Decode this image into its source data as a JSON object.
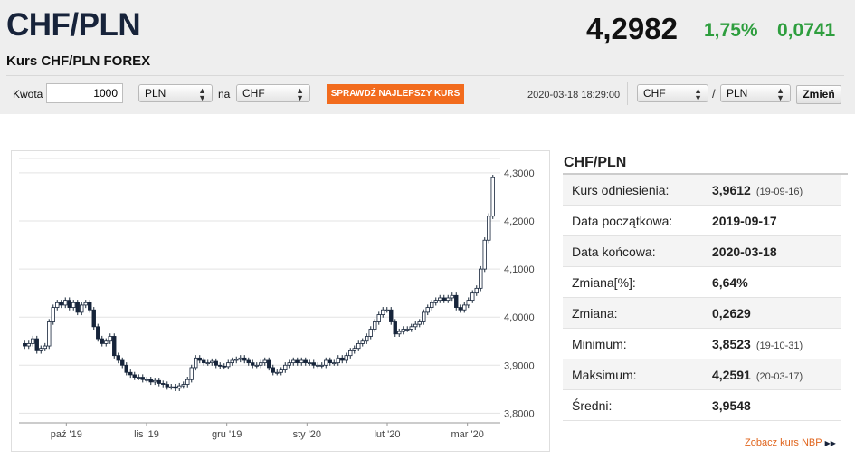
{
  "header": {
    "pair": "CHF/PLN",
    "subtitle": "Kurs CHF/PLN FOREX",
    "rate": "4,2982",
    "change_pct": "1,75%",
    "change_abs": "0,0741",
    "positive_color": "#2e9e3e"
  },
  "converter": {
    "amount_label": "Kwota",
    "amount_value": "1000",
    "from_currency": "PLN",
    "to_label": "na",
    "to_currency": "CHF",
    "check_button": "SPRAWDŹ NAJLEPSZY KURS",
    "accent_color": "#f26b1d"
  },
  "pair_selector": {
    "timestamp": "2020-03-18 18:29:00",
    "base": "CHF",
    "separator": "/",
    "quote": "PLN",
    "change_button": "Zmień"
  },
  "chart_data": {
    "type": "candlestick",
    "x_tick_labels": [
      "paź '19",
      "lis '19",
      "gru '19",
      "sty '20",
      "lut '20",
      "mar '20"
    ],
    "y_ticks": [
      3.8,
      3.9,
      4.0,
      4.1,
      4.2,
      4.3
    ],
    "y_tick_labels": [
      "3,8000",
      "3,9000",
      "4,0000",
      "4,1000",
      "4,2000",
      "4,3000"
    ],
    "ylim": [
      3.78,
      4.33
    ],
    "grid": true,
    "date_range": [
      "2019-09-17",
      "2020-03-18"
    ],
    "close_series": [
      3.94,
      3.945,
      3.955,
      3.93,
      3.935,
      3.94,
      3.99,
      4.02,
      4.03,
      4.025,
      4.035,
      4.02,
      4.03,
      4.01,
      4.025,
      4.03,
      4.015,
      3.98,
      3.955,
      3.945,
      3.95,
      3.96,
      3.92,
      3.91,
      3.9,
      3.885,
      3.88,
      3.875,
      3.875,
      3.87,
      3.87,
      3.865,
      3.868,
      3.862,
      3.86,
      3.855,
      3.855,
      3.852,
      3.857,
      3.86,
      3.87,
      3.895,
      3.915,
      3.91,
      3.905,
      3.905,
      3.908,
      3.9,
      3.898,
      3.897,
      3.905,
      3.91,
      3.912,
      3.915,
      3.91,
      3.905,
      3.9,
      3.9,
      3.905,
      3.91,
      3.895,
      3.885,
      3.885,
      3.89,
      3.9,
      3.905,
      3.91,
      3.905,
      3.91,
      3.905,
      3.905,
      3.9,
      3.9,
      3.9,
      3.91,
      3.905,
      3.905,
      3.915,
      3.91,
      3.92,
      3.93,
      3.935,
      3.945,
      3.95,
      3.96,
      3.975,
      3.99,
      4.005,
      4.015,
      4.015,
      3.99,
      3.965,
      3.97,
      3.975,
      3.975,
      3.98,
      3.985,
      3.99,
      4.01,
      4.02,
      4.03,
      4.035,
      4.04,
      4.035,
      4.04,
      4.045,
      4.02,
      4.015,
      4.025,
      4.035,
      4.05,
      4.06,
      4.1,
      4.16,
      4.21,
      4.29
    ],
    "xlabel": "",
    "ylabel": ""
  },
  "stats": {
    "title": "CHF/PLN",
    "rows": [
      {
        "label": "Kurs odniesienia:",
        "value": "3,9612",
        "date": "(19-09-16)"
      },
      {
        "label": "Data początkowa:",
        "value": "2019-09-17",
        "date": ""
      },
      {
        "label": "Data końcowa:",
        "value": "2020-03-18",
        "date": ""
      },
      {
        "label": "Zmiana[%]:",
        "value": "6,64%",
        "date": ""
      },
      {
        "label": "Zmiana:",
        "value": "0,2629",
        "date": ""
      },
      {
        "label": "Minimum:",
        "value": "3,8523",
        "date": "(19-10-31)"
      },
      {
        "label": "Maksimum:",
        "value": "4,2591",
        "date": "(20-03-17)"
      },
      {
        "label": "Średni:",
        "value": "3,9548",
        "date": ""
      }
    ],
    "link": "Zobacz kurs NBP",
    "link_icon": "double-triangle-right-icon"
  }
}
